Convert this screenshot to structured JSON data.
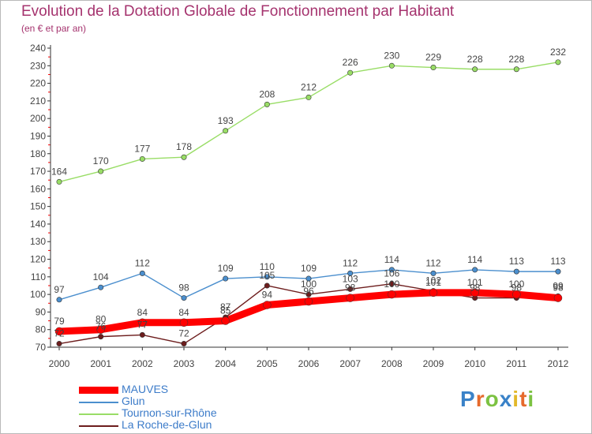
{
  "header": {
    "title": "Evolution de la Dotation Globale de Fonctionnement par Habitant",
    "subtitle": "(en € et par an)"
  },
  "brand": {
    "logo_text": "Proxiti"
  },
  "colors": {
    "mauves": "#ff0000",
    "glun": "#4b8fce",
    "tournon": "#99dd66",
    "laroche": "#6d1d1d",
    "axis": "#333333",
    "grid_tick": "#ff0000",
    "label": "#444444",
    "title": "#a5336e",
    "legend_text": "#3d7cc9"
  },
  "chart_data": {
    "type": "line",
    "title": "Evolution de la Dotation Globale de Fonctionnement par Habitant",
    "subtitle": "(en € et par an)",
    "xlabel": "",
    "ylabel": "",
    "ylim": [
      70,
      240
    ],
    "yticks": [
      70,
      80,
      90,
      100,
      110,
      120,
      130,
      140,
      150,
      160,
      170,
      180,
      190,
      200,
      210,
      220,
      230,
      240
    ],
    "x": [
      "2000",
      "2001",
      "2002",
      "2003",
      "2004",
      "2005",
      "2006",
      "2007",
      "2008",
      "2009",
      "2010",
      "2011",
      "2012"
    ],
    "legend_position": "bottom-left",
    "series": [
      {
        "name": "MAUVES",
        "key": "mauves",
        "values": [
          79,
          80,
          84,
          84,
          85,
          94,
          96,
          98,
          100,
          101,
          101,
          100,
          98
        ]
      },
      {
        "name": "Glun",
        "key": "glun",
        "values": [
          97,
          104,
          112,
          98,
          109,
          110,
          109,
          112,
          114,
          112,
          114,
          113,
          113
        ]
      },
      {
        "name": "Tournon-sur-Rhône",
        "key": "tournon",
        "values": [
          164,
          170,
          177,
          178,
          193,
          208,
          212,
          226,
          230,
          229,
          228,
          228,
          232
        ]
      },
      {
        "name": "La Roche-de-Glun",
        "key": "laroche",
        "values": [
          72,
          76,
          77,
          72,
          87,
          105,
          100,
          103,
          106,
          102,
          98,
          98,
          99
        ]
      }
    ]
  }
}
